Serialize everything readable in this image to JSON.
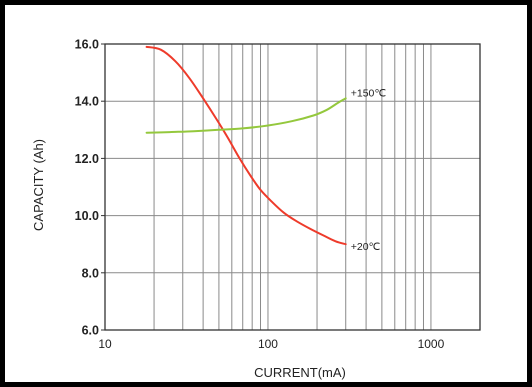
{
  "chart_data": {
    "type": "line",
    "title": "",
    "xlabel": "CURRENT(mA)",
    "ylabel": "CAPACITY (Ah)",
    "x_scale": "log",
    "xlim": [
      10,
      2000
    ],
    "ylim": [
      6.0,
      16.0
    ],
    "x_ticks": [
      {
        "value": 10,
        "label": "10"
      },
      {
        "value": 100,
        "label": "100"
      },
      {
        "value": 1000,
        "label": "1000"
      }
    ],
    "y_ticks": [
      {
        "value": 6.0,
        "label": "6.0"
      },
      {
        "value": 8.0,
        "label": "8.0"
      },
      {
        "value": 10.0,
        "label": "10.0"
      },
      {
        "value": 12.0,
        "label": "12.0"
      },
      {
        "value": 14.0,
        "label": "14.0"
      },
      {
        "value": 16.0,
        "label": "16.0"
      }
    ],
    "grid": true,
    "series": [
      {
        "name": "+20℃",
        "color": "#ee3b2b",
        "x": [
          18,
          22,
          27,
          33,
          40,
          48,
          57,
          67,
          78,
          90,
          105,
          125,
          150,
          180,
          220,
          260,
          300
        ],
        "y": [
          15.9,
          15.8,
          15.4,
          14.8,
          14.1,
          13.4,
          12.7,
          12.0,
          11.4,
          10.9,
          10.5,
          10.1,
          9.8,
          9.55,
          9.3,
          9.1,
          9.0
        ]
      },
      {
        "name": "+150℃",
        "color": "#94c83d",
        "x": [
          18,
          25,
          35,
          50,
          70,
          100,
          140,
          190,
          230,
          270,
          300
        ],
        "y": [
          12.9,
          12.92,
          12.95,
          13.0,
          13.05,
          13.15,
          13.3,
          13.5,
          13.7,
          13.95,
          14.1
        ]
      }
    ]
  }
}
